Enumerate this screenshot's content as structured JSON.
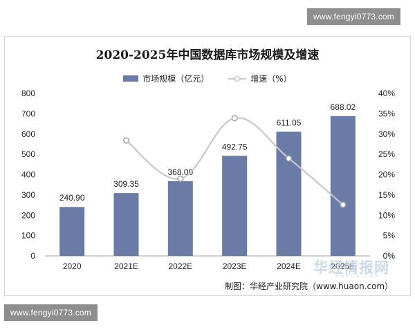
{
  "watermark_top": "www.fengyi0773.com",
  "watermark_bottom": "www.fengyi0773.com",
  "source_text": "制图：华经产业研究院（www.huaon.com）",
  "site_logo": "华经情报网",
  "site_logo_sub": "HUAON.COM",
  "chart_data": {
    "type": "bar",
    "title": "2020-2025年中国数据库市场规模及增速",
    "categories": [
      "2020",
      "2021E",
      "2022E",
      "2023E",
      "2024E",
      "2025E"
    ],
    "series": [
      {
        "name": "市场规模（亿元）",
        "type": "bar",
        "axis": "left",
        "color": "#6b7ba7",
        "values": [
          240.9,
          309.35,
          368.0,
          492.75,
          611.05,
          688.02
        ],
        "labels": [
          "240.90",
          "309.35",
          "368.00",
          "492.75",
          "611.05",
          "688.02"
        ]
      },
      {
        "name": "增速（%）",
        "type": "line",
        "axis": "right",
        "color": "#c8c8c8",
        "values": [
          null,
          28.4,
          19.0,
          33.9,
          24.0,
          12.6
        ]
      }
    ],
    "ylim": [
      0,
      800
    ],
    "y_ticks": [
      "0",
      "100",
      "200",
      "300",
      "400",
      "500",
      "600",
      "700",
      "800"
    ],
    "y2lim": [
      0,
      40
    ],
    "y2_ticks": [
      "0%",
      "5%",
      "10%",
      "15%",
      "20%",
      "25%",
      "30%",
      "35%",
      "40%"
    ],
    "grid": false,
    "legend_position": "top"
  }
}
